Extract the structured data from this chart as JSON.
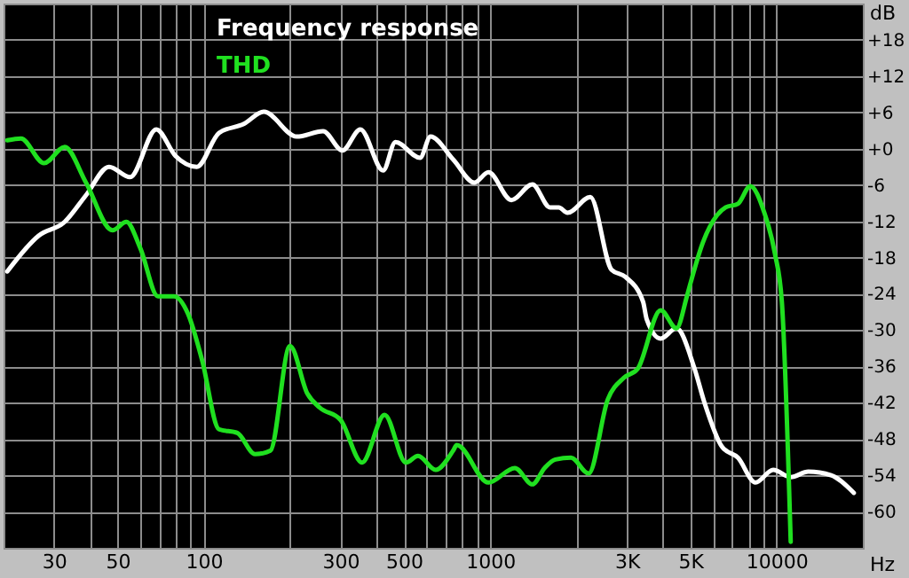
{
  "chart_data": {
    "type": "line",
    "xlabel": "Hz",
    "ylabel": "dB",
    "log": "x",
    "grid": true,
    "legend": "top left",
    "line_style": "solid",
    "marker": "none",
    "xlim": [
      20,
      20000
    ],
    "ylim": [
      -66,
      24
    ],
    "xticks": [
      {
        "value": 20,
        "label": null
      },
      30,
      {
        "value": 40,
        "label": null
      },
      50,
      {
        "value": 60,
        "label": null
      },
      {
        "value": 70,
        "label": null
      },
      {
        "value": 80,
        "label": null
      },
      {
        "value": 90,
        "label": null
      },
      100,
      {
        "value": 200,
        "label": null
      },
      300,
      {
        "value": 400,
        "label": null
      },
      500,
      {
        "value": 600,
        "label": null
      },
      {
        "value": 700,
        "label": null
      },
      {
        "value": 800,
        "label": null
      },
      {
        "value": 900,
        "label": null
      },
      1000,
      {
        "value": 2000,
        "label": null
      },
      {
        "value": 3000,
        "label": "3K"
      },
      {
        "value": 4000,
        "label": null
      },
      {
        "value": 5000,
        "label": "5K"
      },
      {
        "value": 6000,
        "label": null
      },
      {
        "value": 7000,
        "label": null
      },
      {
        "value": 8000,
        "label": null
      },
      {
        "value": 9000,
        "label": null
      },
      10000,
      {
        "value": 20000,
        "label": null
      }
    ],
    "yticks": [
      {
        "value": 18,
        "label": "+18"
      },
      {
        "value": 12,
        "label": "+12"
      },
      {
        "value": 6,
        "label": "+6"
      },
      {
        "value": 0,
        "label": "+0"
      },
      -6,
      -12,
      -18,
      -24,
      -30,
      -36,
      -42,
      -48,
      -54,
      -60
    ],
    "series": [
      {
        "name": "Frequency response",
        "color": "#ffffff",
        "x": [
          20.6,
          26.5,
          32.7,
          38.8,
          46.7,
          55.3,
          68.3,
          79.7,
          94.5,
          113,
          138,
          162,
          211,
          261,
          305,
          352,
          423,
          467,
          569,
          619,
          743,
          881,
          986,
          1186,
          1404,
          1617,
          1735,
          1862,
          2237,
          2651,
          2967,
          3418,
          3519,
          3938,
          4470,
          5148,
          5600,
          6450,
          7330,
          8440,
          9730,
          11200,
          12900,
          15500,
          18600
        ],
        "values": [
          -20.3,
          -14.4,
          -12.1,
          -7.7,
          -3.0,
          -4.7,
          3.2,
          -1.2,
          -3.0,
          2.6,
          4.1,
          6.1,
          2.0,
          2.9,
          -0.3,
          3.2,
          -3.6,
          1.1,
          -1.5,
          2.0,
          -1.8,
          -5.6,
          -3.9,
          -8.5,
          -5.9,
          -9.7,
          -9.7,
          -10.6,
          -8.0,
          -20.0,
          -21.2,
          -25.3,
          -28.2,
          -31.4,
          -29.7,
          -36.1,
          -42.0,
          -49.3,
          -51.1,
          -55.2,
          -53.1,
          -54.3,
          -53.4,
          -54.0,
          -56.9
        ]
      },
      {
        "name": "THD",
        "color": "#20e020",
        "x": [
          20.6,
          23.0,
          27.7,
          32.7,
          38.8,
          48.0,
          53.7,
          60.1,
          69.2,
          78.7,
          88.1,
          98.6,
          113,
          131,
          151,
          171,
          200,
          230,
          254,
          301,
          357,
          428,
          508,
          560,
          645,
          743,
          764,
          986,
          1219,
          1404,
          1549,
          1687,
          1915,
          2206,
          2577,
          2926,
          3273,
          3938,
          4470,
          4862,
          5000,
          5520,
          6640,
          7330,
          8090,
          9060,
          9860,
          10430,
          11200
        ],
        "values": [
          1.4,
          1.7,
          -2.4,
          0.3,
          -5.6,
          -13.5,
          -12.1,
          -16.5,
          -24.4,
          -24.4,
          -27.3,
          -34.9,
          -46.4,
          -47.0,
          -50.5,
          -49.9,
          -32.6,
          -40.5,
          -42.8,
          -44.9,
          -51.9,
          -44.0,
          -51.9,
          -50.8,
          -53.1,
          -49.9,
          -49.0,
          -55.2,
          -52.8,
          -55.5,
          -52.8,
          -51.4,
          -51.1,
          -53.7,
          -41.4,
          -37.9,
          -36.4,
          -26.7,
          -29.7,
          -24.4,
          -22.3,
          -15.6,
          -9.7,
          -9.1,
          -6.2,
          -10.6,
          -17.3,
          -25.3,
          -65.0
        ]
      }
    ]
  }
}
